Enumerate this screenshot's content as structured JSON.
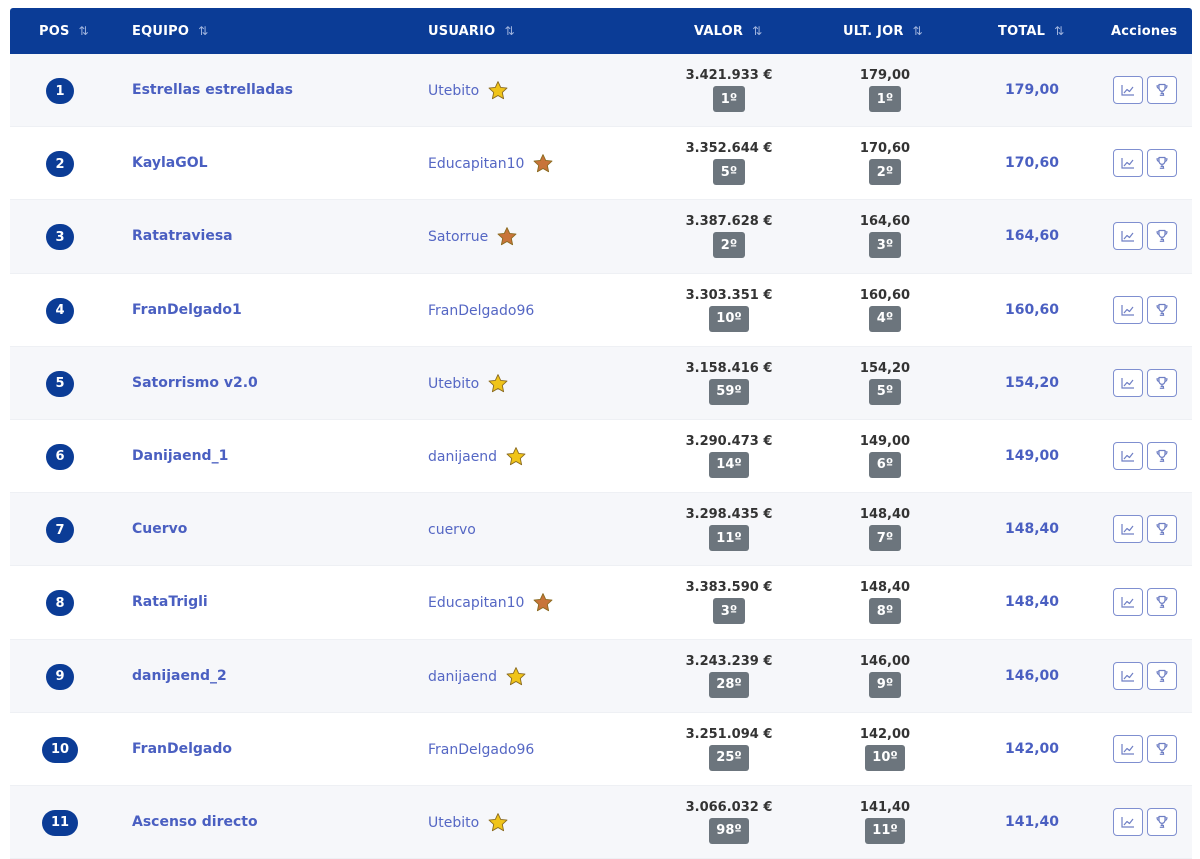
{
  "header": {
    "pos": "POS",
    "equipo": "EQUIPO",
    "usuario": "USUARIO",
    "valor": "VALOR",
    "ult_jor": "ULT. JOR",
    "total": "TOTAL",
    "acciones": "Acciones",
    "sort_glyph": "⇅"
  },
  "colors": {
    "header_bg": "#0b3c96",
    "pos_badge": "#0b3c96",
    "rank_badge": "#6c757d",
    "link": "#4a5fc1",
    "star_gold": "#f0c419",
    "star_bronze": "#c8743a"
  },
  "rows": [
    {
      "pos": "1",
      "team": "Estrellas estrelladas",
      "user": "Utebito",
      "star": "gold",
      "valor": "3.421.933 €",
      "valor_rank": "1º",
      "ult": "179,00",
      "ult_rank": "1º",
      "total": "179,00"
    },
    {
      "pos": "2",
      "team": "KaylaGOL",
      "user": "Educapitan10",
      "star": "bronze",
      "valor": "3.352.644 €",
      "valor_rank": "5º",
      "ult": "170,60",
      "ult_rank": "2º",
      "total": "170,60"
    },
    {
      "pos": "3",
      "team": "Ratatraviesa",
      "user": "Satorrue",
      "star": "bronze",
      "valor": "3.387.628 €",
      "valor_rank": "2º",
      "ult": "164,60",
      "ult_rank": "3º",
      "total": "164,60"
    },
    {
      "pos": "4",
      "team": "FranDelgado1",
      "user": "FranDelgado96",
      "star": "none",
      "valor": "3.303.351 €",
      "valor_rank": "10º",
      "ult": "160,60",
      "ult_rank": "4º",
      "total": "160,60"
    },
    {
      "pos": "5",
      "team": "Satorrismo v2.0",
      "user": "Utebito",
      "star": "gold",
      "valor": "3.158.416 €",
      "valor_rank": "59º",
      "ult": "154,20",
      "ult_rank": "5º",
      "total": "154,20"
    },
    {
      "pos": "6",
      "team": "Danijaend_1",
      "user": "danijaend",
      "star": "gold",
      "valor": "3.290.473 €",
      "valor_rank": "14º",
      "ult": "149,00",
      "ult_rank": "6º",
      "total": "149,00"
    },
    {
      "pos": "7",
      "team": "Cuervo",
      "user": "cuervo",
      "star": "none",
      "valor": "3.298.435 €",
      "valor_rank": "11º",
      "ult": "148,40",
      "ult_rank": "7º",
      "total": "148,40"
    },
    {
      "pos": "8",
      "team": "RataTrigli",
      "user": "Educapitan10",
      "star": "bronze",
      "valor": "3.383.590 €",
      "valor_rank": "3º",
      "ult": "148,40",
      "ult_rank": "8º",
      "total": "148,40"
    },
    {
      "pos": "9",
      "team": "danijaend_2",
      "user": "danijaend",
      "star": "gold",
      "valor": "3.243.239 €",
      "valor_rank": "28º",
      "ult": "146,00",
      "ult_rank": "9º",
      "total": "146,00"
    },
    {
      "pos": "10",
      "team": "FranDelgado",
      "user": "FranDelgado96",
      "star": "none",
      "valor": "3.251.094 €",
      "valor_rank": "25º",
      "ult": "142,00",
      "ult_rank": "10º",
      "total": "142,00"
    },
    {
      "pos": "11",
      "team": "Ascenso directo",
      "user": "Utebito",
      "star": "gold",
      "valor": "3.066.032 €",
      "valor_rank": "98º",
      "ult": "141,40",
      "ult_rank": "11º",
      "total": "141,40"
    }
  ],
  "icons": {
    "sort": "sort-arrows-icon",
    "star": "star-icon",
    "chart": "line-chart-icon",
    "trophy": "trophy-icon"
  }
}
